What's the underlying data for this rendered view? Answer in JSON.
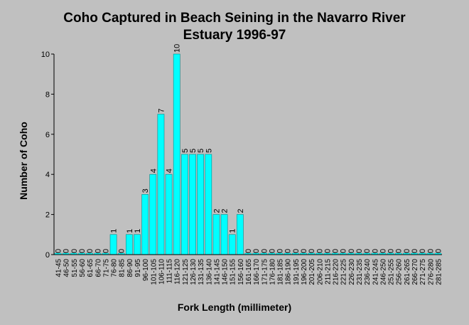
{
  "chart_data": {
    "type": "bar",
    "title": "Coho Captured in Beach Seining in the Navarro River Estuary 1996-97",
    "title_lines": [
      "Coho Captured in Beach Seining in the Navarro River",
      "Estuary 1996-97"
    ],
    "xlabel": "Fork Length (millimeter)",
    "ylabel": "Number of Coho",
    "ylim": [
      0,
      10
    ],
    "yticks": [
      "0",
      "2",
      "4",
      "6",
      "8",
      "10"
    ],
    "grid": false,
    "bar_color": "#00ffff",
    "categories": [
      "41-45",
      "46-50",
      "51-55",
      "56-60",
      "61-65",
      "66-70",
      "71-75",
      "76-80",
      "81-85",
      "86-90",
      "91-95",
      "96-100",
      "101-105",
      "106-110",
      "111-115",
      "116-120",
      "121-125",
      "126-130",
      "131-135",
      "136-140",
      "141-145",
      "146-150",
      "151-155",
      "156-160",
      "161-165",
      "166-170",
      "171-175",
      "176-180",
      "181-185",
      "186-190",
      "191-195",
      "196-200",
      "201-205",
      "206-210",
      "211-215",
      "216-220",
      "221-225",
      "226-230",
      "231-235",
      "236-240",
      "241-245",
      "246-250",
      "251-255",
      "256-260",
      "261-265",
      "266-270",
      "271-275",
      "276-280",
      "281-285"
    ],
    "values": [
      0,
      0,
      0,
      0,
      0,
      0,
      0,
      1,
      0,
      1,
      1,
      3,
      4,
      7,
      4,
      10,
      5,
      5,
      5,
      5,
      2,
      2,
      1,
      2,
      0,
      0,
      0,
      0,
      0,
      0,
      0,
      0,
      0,
      0,
      0,
      0,
      0,
      0,
      0,
      0,
      0,
      0,
      0,
      0,
      0,
      0,
      0,
      0,
      0
    ]
  }
}
